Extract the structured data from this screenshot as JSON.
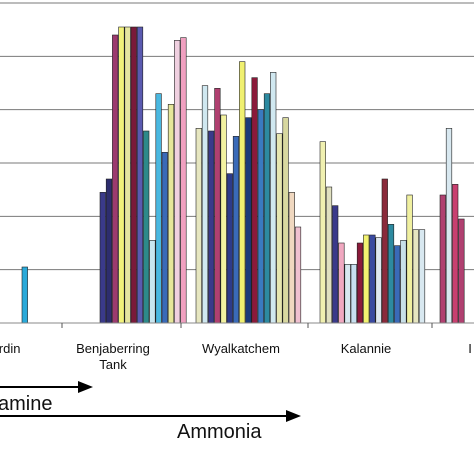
{
  "chart_data": {
    "type": "bar",
    "categories": [
      "erdin",
      "Benjaberring\nTank",
      "Wyalkatchem",
      "Kalannie",
      "I"
    ],
    "ylim": [
      0,
      6
    ],
    "grid": true,
    "groups": [
      {
        "category": "erdin",
        "bars": [
          {
            "color": "#29a9d9",
            "value": 1.05
          }
        ]
      },
      {
        "category": "Benjaberring\nTank",
        "bars": [
          {
            "color": "#3a3a8a",
            "value": 2.45
          },
          {
            "color": "#2d2d6e",
            "value": 2.7
          },
          {
            "color": "#9b3a6e",
            "value": 5.4
          },
          {
            "color": "#f2f27a",
            "value": 5.55
          },
          {
            "color": "#e6e6a0",
            "value": 5.55
          },
          {
            "color": "#7a1a3a",
            "value": 5.55
          },
          {
            "color": "#5a5ab0",
            "value": 5.55
          },
          {
            "color": "#2d8a8a",
            "value": 3.6
          },
          {
            "color": "#c8e6f0",
            "value": 1.55
          },
          {
            "color": "#4ab8e0",
            "value": 4.3
          },
          {
            "color": "#3a6ab8",
            "value": 3.2
          },
          {
            "color": "#e6e69a",
            "value": 4.1
          },
          {
            "color": "#f0d0e0",
            "value": 5.3
          },
          {
            "color": "#f0a0c0",
            "value": 5.35
          }
        ]
      },
      {
        "category": "Wyalkatchem",
        "bars": [
          {
            "color": "#e6e6c0",
            "value": 3.65
          },
          {
            "color": "#d0e8f0",
            "value": 4.45
          },
          {
            "color": "#3a3a8a",
            "value": 3.6
          },
          {
            "color": "#b04070",
            "value": 4.4
          },
          {
            "color": "#f2f2a0",
            "value": 3.9
          },
          {
            "color": "#2d3a8a",
            "value": 2.8
          },
          {
            "color": "#3a6ab8",
            "value": 3.5
          },
          {
            "color": "#f0f070",
            "value": 4.9
          },
          {
            "color": "#1a3a7a",
            "value": 3.85
          },
          {
            "color": "#8a1a3a",
            "value": 4.6
          },
          {
            "color": "#3a7ac0",
            "value": 4.0
          },
          {
            "color": "#2d8aa0",
            "value": 4.3
          },
          {
            "color": "#d0e8f0",
            "value": 4.7
          },
          {
            "color": "#e6e6b0",
            "value": 3.55
          },
          {
            "color": "#d8d8a0",
            "value": 3.85
          },
          {
            "color": "#f0d8c0",
            "value": 2.45
          },
          {
            "color": "#f0c0d0",
            "value": 1.8
          }
        ]
      },
      {
        "category": "Kalannie",
        "bars": [
          {
            "color": "#f0f0b0",
            "value": 3.4
          },
          {
            "color": "#e0e0c0",
            "value": 2.55
          },
          {
            "color": "#3a3a8a",
            "value": 2.2
          },
          {
            "color": "#f0a8c0",
            "value": 1.5
          },
          {
            "color": "#d8e8f0",
            "value": 1.1
          },
          {
            "color": "#c8e0f0",
            "value": 1.1
          },
          {
            "color": "#8a1a3a",
            "value": 1.5
          },
          {
            "color": "#f2f270",
            "value": 1.65
          },
          {
            "color": "#3a4aa0",
            "value": 1.65
          },
          {
            "color": "#e0e8f0",
            "value": 1.6
          },
          {
            "color": "#8a2a3a",
            "value": 2.7
          },
          {
            "color": "#2d8aa0",
            "value": 1.85
          },
          {
            "color": "#3a6ab8",
            "value": 1.45
          },
          {
            "color": "#c8e0e8",
            "value": 1.55
          },
          {
            "color": "#f0f0a0",
            "value": 2.4
          },
          {
            "color": "#e6e6c0",
            "value": 1.75
          },
          {
            "color": "#d8e8f0",
            "value": 1.75
          }
        ]
      },
      {
        "category": "I",
        "bars": [
          {
            "color": "#b04070",
            "value": 2.4
          },
          {
            "color": "#d8e8f0",
            "value": 3.65
          },
          {
            "color": "#c84070",
            "value": 2.6
          },
          {
            "color": "#b04070",
            "value": 1.95
          }
        ]
      }
    ]
  },
  "annotations": [
    {
      "text": "amine"
    },
    {
      "text": "Ammonia"
    }
  ]
}
